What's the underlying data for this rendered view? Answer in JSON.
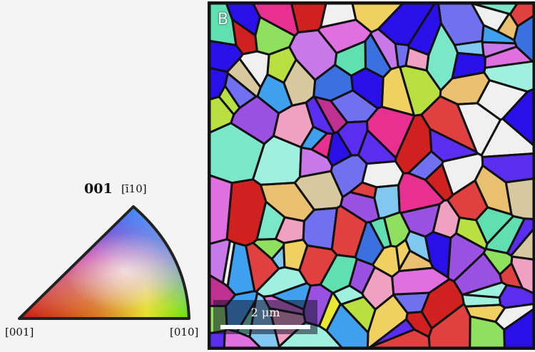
{
  "ipf_key": {
    "title": "001",
    "top_direction": "[ī10]",
    "left_direction": "[001]",
    "right_direction": "[010]"
  },
  "map": {
    "panel_letter": "B",
    "scale_label": "2 μm"
  },
  "colors": {
    "grain_boundary": "#111111",
    "ipf_red": "#c81010",
    "ipf_green": "#66e000",
    "ipf_blue": "#2a10e8",
    "ipf_magenta": "#d030d0",
    "ipf_yellow": "#e8e820",
    "ipf_cyan": "#80e8e0"
  }
}
